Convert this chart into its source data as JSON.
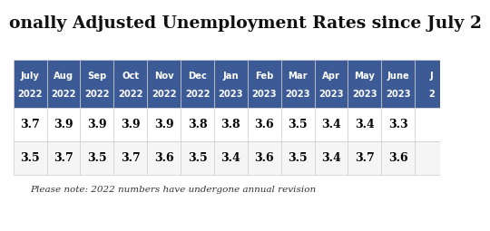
{
  "title": "onally Adjusted Unemployment Rates since July 2",
  "header_months": [
    "July",
    "Aug",
    "Sep",
    "Oct",
    "Nov",
    "Dec",
    "Jan",
    "Feb",
    "Mar",
    "Apr",
    "May",
    "June",
    "J"
  ],
  "header_years": [
    "2022",
    "2022",
    "2022",
    "2022",
    "2022",
    "2022",
    "2023",
    "2023",
    "2023",
    "2023",
    "2023",
    "2023",
    "2"
  ],
  "row1": [
    3.7,
    3.9,
    3.9,
    3.9,
    3.9,
    3.8,
    3.8,
    3.6,
    3.5,
    3.4,
    3.4,
    3.3,
    null
  ],
  "row2": [
    3.5,
    3.7,
    3.5,
    3.7,
    3.6,
    3.5,
    3.4,
    3.6,
    3.5,
    3.4,
    3.7,
    3.6,
    null
  ],
  "note": "Please note: 2022 numbers have undergone annual revision",
  "header_bg": "#3c5a96",
  "header_fg": "#ffffff",
  "row1_bg": "#ffffff",
  "row2_bg": "#f5f5f5",
  "cell_text": "#000000",
  "title_color": "#111111",
  "background_color": "#ffffff",
  "border_color": "#cccccc",
  "num_cols": 13,
  "last_col_partial": true,
  "title_fontsize": 13.5,
  "header_fontsize": 7.2,
  "cell_fontsize": 9.0,
  "note_fontsize": 7.5
}
